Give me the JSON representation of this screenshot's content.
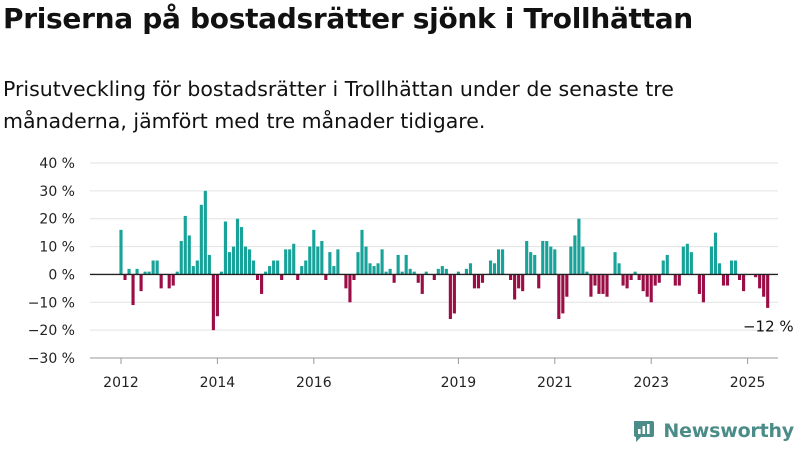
{
  "title": "Priserna på bostadsrätter sjönk i Trollhättan",
  "subtitle": "Prisutveckling för bostadsrätter i Trollhättan under de senaste tre månaderna, jämfört med tre månader tidigare.",
  "brand": {
    "name": "Newsworthy",
    "icon": "newsworthy-logo-icon",
    "color": "#4c8c88"
  },
  "chart_data": {
    "type": "bar",
    "title": "",
    "xlabel": "",
    "ylabel": "",
    "ylim": [
      -30,
      40
    ],
    "y_ticks": [
      40,
      30,
      20,
      10,
      0,
      -10,
      -20,
      -30
    ],
    "y_tick_labels": [
      "40 %",
      "30 %",
      "20 %",
      "10 %",
      "0 %",
      "−10 %",
      "−20 %",
      "−30 %"
    ],
    "x_ticks": [
      2012,
      2014,
      2016,
      2019,
      2021,
      2023,
      2025
    ],
    "x_tick_labels": [
      "2012",
      "2014",
      "2016",
      "2019",
      "2021",
      "2023",
      "2025"
    ],
    "grid": true,
    "colors": {
      "positive": "#18a39a",
      "negative": "#9b0d45"
    },
    "start": "2012-01",
    "frequency": "monthly",
    "end_label": "−12 %",
    "values": [
      16,
      -2,
      2,
      -11,
      2,
      -6,
      1,
      1,
      5,
      5,
      -5,
      0,
      -5,
      -4,
      1,
      12,
      21,
      14,
      3,
      5,
      25,
      30,
      7,
      -20,
      -15,
      1,
      19,
      8,
      10,
      20,
      17,
      10,
      9,
      5,
      -2,
      -7,
      1,
      3,
      5,
      5,
      -2,
      9,
      9,
      11,
      -2,
      3,
      5,
      10,
      16,
      10,
      12,
      -2,
      8,
      3,
      9,
      0,
      -5,
      -10,
      -2,
      8,
      16,
      10,
      4,
      3,
      4,
      9,
      1,
      2,
      -3,
      7,
      1,
      7,
      2,
      1,
      -3,
      -7,
      1,
      0,
      -2,
      2,
      3,
      2,
      -16,
      -14,
      1,
      0,
      2,
      4,
      -5,
      -5,
      -3,
      0,
      5,
      4,
      9,
      9,
      0,
      -2,
      -9,
      -5,
      -6,
      12,
      8,
      7,
      -5,
      12,
      12,
      10,
      9,
      -16,
      -14,
      -8,
      10,
      14,
      20,
      10,
      1,
      -8,
      -4,
      -7,
      -7,
      -8,
      0,
      8,
      4,
      -4,
      -5,
      -2,
      1,
      -2,
      -6,
      -8,
      -10,
      -4,
      -3,
      5,
      7,
      0,
      -4,
      -4,
      10,
      11,
      8,
      0,
      -7,
      -10,
      0,
      10,
      15,
      4,
      -4,
      -4,
      5,
      5,
      -2,
      -6,
      0,
      0,
      -1,
      -5,
      -8,
      -12
    ]
  }
}
